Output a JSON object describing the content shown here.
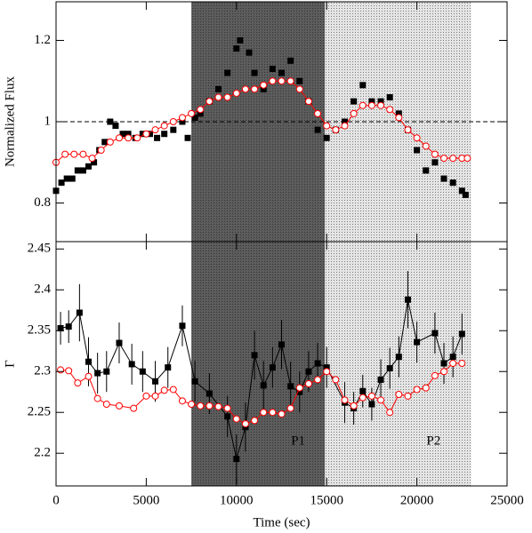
{
  "chart_data": [
    {
      "type": "scatter",
      "y_label": "Normalized Flux",
      "xlim": [
        0,
        25000
      ],
      "xticks": [
        0,
        5000,
        10000,
        15000,
        20000,
        25000
      ],
      "ylim": [
        0.705,
        1.295
      ],
      "yticks": [
        0.8,
        1,
        1.2
      ],
      "hline": 1,
      "series": [
        {
          "color": "#000000",
          "marker": "square",
          "line": false,
          "x": [
            0,
            300,
            600,
            900,
            1200,
            1500,
            1800,
            2100,
            2400,
            2700,
            3000,
            3300,
            3700,
            4000,
            4400,
            4800,
            5200,
            5600,
            6000,
            6500,
            7000,
            7300,
            7700,
            8000,
            8500,
            9000,
            9500,
            10000,
            10200,
            10700,
            11000,
            11500,
            12000,
            12500,
            13000,
            13500,
            14000,
            14500,
            15000,
            15500,
            16000,
            16500,
            17000,
            17500,
            18000,
            18500,
            19000,
            19500,
            20000,
            20500,
            21000,
            21500,
            22000,
            22500,
            22700
          ],
          "values": [
            0.83,
            0.85,
            0.86,
            0.86,
            0.88,
            0.88,
            0.89,
            0.9,
            0.93,
            0.95,
            1.0,
            0.99,
            0.97,
            0.97,
            0.96,
            0.97,
            0.97,
            0.96,
            0.97,
            0.98,
            1.0,
            0.96,
            1.01,
            1.02,
            1.05,
            1.08,
            1.12,
            1.18,
            1.2,
            1.17,
            1.12,
            1.08,
            1.13,
            1.12,
            1.15,
            1.1,
            1.05,
            0.98,
            0.96,
            0.98,
            1.0,
            1.05,
            1.09,
            1.05,
            1.05,
            1.06,
            1.02,
            0.98,
            0.93,
            0.88,
            0.9,
            0.86,
            0.85,
            0.83,
            0.82
          ]
        },
        {
          "color": "#ff0000",
          "marker": "circle",
          "line": true,
          "x": [
            0,
            500,
            1000,
            1500,
            2000,
            2500,
            3000,
            3500,
            4000,
            4500,
            5000,
            5500,
            6000,
            6500,
            7000,
            7500,
            8000,
            8500,
            9000,
            9500,
            10000,
            10500,
            11000,
            11500,
            12000,
            12500,
            13000,
            13500,
            14000,
            14500,
            15000,
            15500,
            16000,
            16500,
            17000,
            17500,
            18000,
            18500,
            19000,
            19500,
            20000,
            20500,
            21000,
            21500,
            22000,
            22500,
            22800
          ],
          "values": [
            0.9,
            0.92,
            0.92,
            0.92,
            0.91,
            0.93,
            0.95,
            0.96,
            0.96,
            0.96,
            0.97,
            0.98,
            0.99,
            1.0,
            1.01,
            1.02,
            1.03,
            1.05,
            1.06,
            1.06,
            1.07,
            1.08,
            1.08,
            1.09,
            1.1,
            1.1,
            1.1,
            1.08,
            1.05,
            1.02,
            0.99,
            0.98,
            0.99,
            1.02,
            1.04,
            1.04,
            1.04,
            1.03,
            1.01,
            0.98,
            0.96,
            0.94,
            0.92,
            0.91,
            0.91,
            0.91,
            0.91
          ]
        }
      ]
    },
    {
      "type": "scatter",
      "x_label": "Time (sec)",
      "y_label": "Γ",
      "xlim": [
        0,
        25000
      ],
      "xticks": [
        0,
        5000,
        10000,
        15000,
        20000,
        25000
      ],
      "ylim": [
        2.16,
        2.459
      ],
      "yticks": [
        2.2,
        2.25,
        2.3,
        2.35,
        2.4,
        2.45
      ],
      "regions": [
        {
          "label": "P1",
          "x": [
            7500,
            14900
          ],
          "color": "#5c5c5c"
        },
        {
          "label": "P2",
          "x": [
            14900,
            23000
          ],
          "color": "#e4e4e4"
        }
      ],
      "series": [
        {
          "color": "#000000",
          "marker": "square",
          "line": true,
          "x": [
            250,
            700,
            1300,
            1800,
            2300,
            2800,
            3500,
            4200,
            4800,
            5500,
            6200,
            7000,
            7700,
            8500,
            9500,
            10000,
            10500,
            11000,
            11500,
            12000,
            12500,
            13000,
            13500,
            14000,
            14500,
            15000,
            16000,
            16500,
            17000,
            17500,
            18000,
            18500,
            19000,
            19500,
            20000,
            21000,
            21500,
            22000,
            22500
          ],
          "values": [
            2.353,
            2.355,
            2.372,
            2.312,
            2.298,
            2.3,
            2.335,
            2.309,
            2.3,
            2.288,
            2.305,
            2.356,
            2.288,
            2.273,
            2.245,
            2.193,
            2.232,
            2.32,
            2.283,
            2.305,
            2.333,
            2.282,
            2.275,
            2.3,
            2.31,
            2.305,
            2.262,
            2.255,
            2.276,
            2.26,
            2.29,
            2.304,
            2.318,
            2.388,
            2.336,
            2.347,
            2.31,
            2.318,
            2.346
          ],
          "errors": [
            0.02,
            0.02,
            0.035,
            0.03,
            0.025,
            0.025,
            0.025,
            0.025,
            0.025,
            0.025,
            0.025,
            0.025,
            0.025,
            0.025,
            0.025,
            0.03,
            0.03,
            0.03,
            0.03,
            0.025,
            0.03,
            0.03,
            0.025,
            0.025,
            0.025,
            0.025,
            0.025,
            0.02,
            0.02,
            0.02,
            0.025,
            0.025,
            0.025,
            0.035,
            0.025,
            0.025,
            0.025,
            0.025,
            0.025
          ]
        },
        {
          "color": "#ff0000",
          "marker": "circle",
          "line": true,
          "x": [
            250,
            700,
            1200,
            1800,
            2300,
            2800,
            3500,
            4300,
            5000,
            5500,
            6000,
            6500,
            7000,
            7500,
            8000,
            8500,
            9000,
            9500,
            10000,
            10500,
            11000,
            11500,
            12000,
            12500,
            13000,
            13500,
            14000,
            14500,
            15000,
            15500,
            16000,
            16500,
            17000,
            17500,
            18000,
            18500,
            19000,
            19500,
            20000,
            20500,
            21000,
            21500,
            22000,
            22500
          ],
          "values": [
            2.302,
            2.301,
            2.286,
            2.294,
            2.267,
            2.26,
            2.258,
            2.255,
            2.27,
            2.27,
            2.277,
            2.278,
            2.264,
            2.26,
            2.258,
            2.258,
            2.257,
            2.255,
            2.242,
            2.236,
            2.24,
            2.25,
            2.25,
            2.248,
            2.255,
            2.28,
            2.285,
            2.29,
            2.3,
            2.29,
            2.265,
            2.258,
            2.268,
            2.27,
            2.265,
            2.25,
            2.272,
            2.27,
            2.278,
            2.28,
            2.295,
            2.3,
            2.31,
            2.31
          ]
        }
      ]
    }
  ]
}
